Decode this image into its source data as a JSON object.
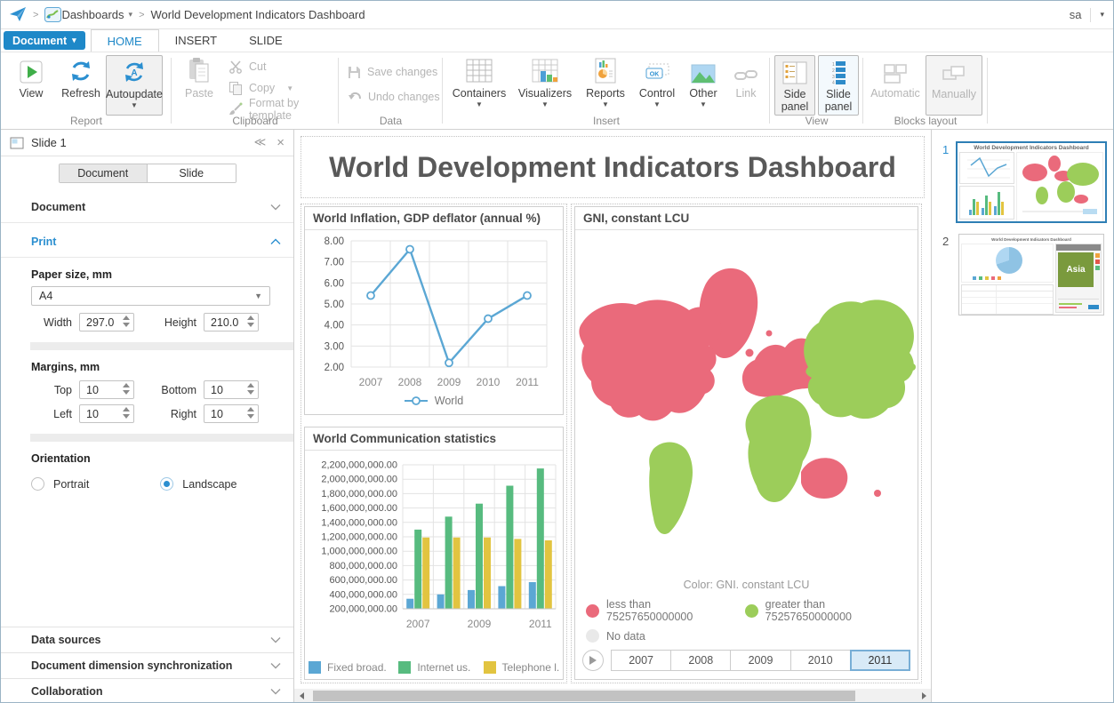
{
  "colors": {
    "accent": "#1E88C8",
    "line_blue": "#5BA7D4",
    "bar_green": "#57BB7F",
    "bar_yellow": "#E2C440",
    "map_red": "#EA6A7B",
    "map_green": "#9CCD5A",
    "map_nodata": "#E9E9E9",
    "year_selected_bg": "#D8EAF7",
    "year_selected_border": "#78AED6"
  },
  "breadcrumb": {
    "dashboards": "Dashboards",
    "title": "World Development Indicators Dashboard",
    "user": "sa"
  },
  "menu": {
    "document_button": "Document"
  },
  "tabs": {
    "home": "HOME",
    "insert": "INSERT",
    "slide": "SLIDE"
  },
  "ribbon": {
    "report": {
      "label": "Report",
      "view": "View",
      "refresh": "Refresh",
      "autoupdate": "Autoupdate"
    },
    "clipboard": {
      "label": "Clipboard",
      "paste": "Paste",
      "cut": "Cut",
      "copy": "Copy",
      "format": "Format by template"
    },
    "data": {
      "label": "Data",
      "save": "Save changes",
      "undo": "Undo changes"
    },
    "insert": {
      "label": "Insert",
      "containers": "Containers",
      "visualizers": "Visualizers",
      "reports": "Reports",
      "control": "Control",
      "other": "Other",
      "link": "Link"
    },
    "view": {
      "label": "View",
      "side_panel": "Side panel",
      "slide_panel": "Slide panel"
    },
    "blocks": {
      "label": "Blocks layout",
      "automatic": "Automatic",
      "manually": "Manually"
    }
  },
  "left_panel": {
    "header": "Slide 1",
    "tabs": {
      "document": "Document",
      "slide": "Slide"
    },
    "sections": {
      "document": "Document",
      "print": "Print"
    },
    "print": {
      "paper_size_label": "Paper size, mm",
      "paper_size_value": "A4",
      "width_label": "Width",
      "width_value": "297.0",
      "height_label": "Height",
      "height_value": "210.0",
      "margins_label": "Margins, mm",
      "top_label": "Top",
      "top_value": "10",
      "bottom_label": "Bottom",
      "bottom_value": "10",
      "left_label": "Left",
      "left_value": "10",
      "right_label": "Right",
      "right_value": "10",
      "orientation_label": "Orientation",
      "portrait": "Portrait",
      "landscape": "Landscape"
    },
    "bottom_sections": {
      "data_sources": "Data sources",
      "dimension_sync": "Document dimension synchronization",
      "collaboration": "Collaboration"
    }
  },
  "canvas": {
    "title": "World Development Indicators Dashboard"
  },
  "chart_data": [
    {
      "type": "line",
      "title": "World Inflation, GDP deflator (annual %)",
      "x": [
        "2007",
        "2008",
        "2009",
        "2010",
        "2011"
      ],
      "series": [
        {
          "name": "World",
          "color": "#5BA7D4",
          "values": [
            5.4,
            7.6,
            2.2,
            4.3,
            5.4
          ]
        }
      ],
      "ylim": [
        2,
        8
      ],
      "ytick_step": 1,
      "grid": true,
      "legend_position": "bottom"
    },
    {
      "type": "bar",
      "title": "World Communication statistics",
      "categories": [
        "2007",
        "2008",
        "2009",
        "2010",
        "2011"
      ],
      "x_labels_shown": [
        "2007",
        "2009",
        "2011"
      ],
      "series": [
        {
          "name": "Fixed broad...",
          "color": "#5BA7D4",
          "values": [
            340000000,
            400000000,
            460000000,
            515000000,
            570000000
          ]
        },
        {
          "name": "Internet us...",
          "color": "#57BB7F",
          "values": [
            1300000000,
            1480000000,
            1660000000,
            1910000000,
            2150000000
          ]
        },
        {
          "name": "Telephone l...",
          "color": "#E2C440",
          "values": [
            1190000000,
            1190000000,
            1190000000,
            1170000000,
            1150000000
          ]
        }
      ],
      "ylim": [
        200000000,
        2200000000
      ],
      "ytick_step": 200000000,
      "grid": true,
      "legend_position": "bottom"
    },
    {
      "type": "choropleth_map",
      "title": "GNI, constant LCU",
      "caption": "Color: GNI. constant LCU",
      "legend": [
        {
          "label": "less than 75257650000000",
          "color": "#EA6A7B",
          "regions": [
            "North America",
            "Greenland",
            "Europe",
            "Australia"
          ]
        },
        {
          "label": "greater than 75257650000000",
          "color": "#9CCD5A",
          "regions": [
            "Asia",
            "Africa",
            "South America"
          ]
        },
        {
          "label": "No data",
          "color": "#E9E9E9",
          "regions": []
        }
      ],
      "years": [
        "2007",
        "2008",
        "2009",
        "2010",
        "2011"
      ],
      "selected_year": "2011"
    }
  ],
  "slides_panel": {
    "slides": [
      {
        "number": "1",
        "selected": true
      },
      {
        "number": "2",
        "selected": false,
        "asia_label": "Asia"
      }
    ]
  }
}
